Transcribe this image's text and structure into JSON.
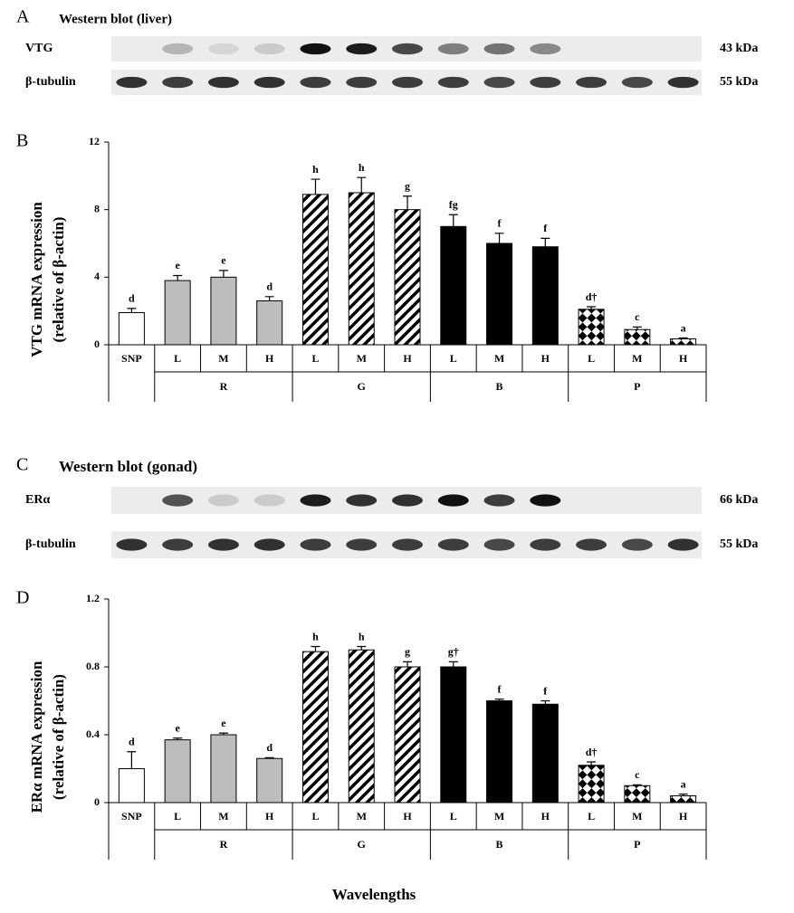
{
  "blots": [
    {
      "panel": "A",
      "title": "Western blot (liver)",
      "rows": [
        {
          "label": "VTG",
          "size": "43 kDa",
          "bands": [
            0,
            0.25,
            0.1,
            0.15,
            1,
            0.95,
            0.75,
            0.5,
            0.55,
            0.45,
            0,
            0,
            0
          ]
        },
        {
          "label": "β-tubulin",
          "size": "55 kDa",
          "bands": [
            0.85,
            0.8,
            0.85,
            0.85,
            0.8,
            0.8,
            0.8,
            0.8,
            0.75,
            0.8,
            0.8,
            0.75,
            0.85
          ]
        }
      ]
    },
    {
      "panel": "C",
      "title": "Western blot (gonad)",
      "rows": [
        {
          "label": "ERα",
          "size": "66 kDa",
          "bands": [
            0,
            0.7,
            0.15,
            0.15,
            0.95,
            0.85,
            0.85,
            1,
            0.8,
            1,
            0,
            0,
            0
          ]
        },
        {
          "label": "β-tubulin",
          "size": "55 kDa",
          "bands": [
            0.85,
            0.8,
            0.85,
            0.85,
            0.8,
            0.8,
            0.8,
            0.8,
            0.75,
            0.8,
            0.8,
            0.75,
            0.85
          ]
        }
      ]
    }
  ],
  "chart_data": [
    {
      "type": "bar",
      "panel": "B",
      "ylabel": [
        "VTG mRNA expression",
        "(relative of β-actin)"
      ],
      "ylim": [
        0,
        12
      ],
      "yticks": [
        0,
        4,
        8,
        12
      ],
      "groups": [
        {
          "categories": [
            "SNP"
          ],
          "style": "white"
        },
        {
          "name": "R",
          "categories": [
            "L",
            "M",
            "H"
          ],
          "style": "gray"
        },
        {
          "name": "G",
          "categories": [
            "L",
            "M",
            "H"
          ],
          "style": "hatch"
        },
        {
          "name": "B",
          "categories": [
            "L",
            "M",
            "H"
          ],
          "style": "black"
        },
        {
          "name": "P",
          "categories": [
            "L",
            "M",
            "H"
          ],
          "style": "checker"
        }
      ],
      "values": [
        1.9,
        3.8,
        4.0,
        2.6,
        8.9,
        9.0,
        8.0,
        7.0,
        6.0,
        5.8,
        2.1,
        0.9,
        0.35
      ],
      "errors": [
        0.25,
        0.3,
        0.4,
        0.25,
        0.9,
        0.9,
        0.8,
        0.7,
        0.6,
        0.5,
        0.15,
        0.15,
        0.05
      ],
      "annotations": [
        "d",
        "e",
        "e",
        "d",
        "h",
        "h",
        "g",
        "fg",
        "f",
        "f",
        "d†",
        "c",
        "a"
      ]
    },
    {
      "type": "bar",
      "panel": "D",
      "ylabel": [
        "ERα mRNA expression",
        "(relative of β-actin)"
      ],
      "ylim": [
        0,
        1.2
      ],
      "yticks": [
        0,
        0.4,
        0.8,
        1.2
      ],
      "groups": [
        {
          "categories": [
            "SNP"
          ],
          "style": "white"
        },
        {
          "name": "R",
          "categories": [
            "L",
            "M",
            "H"
          ],
          "style": "gray"
        },
        {
          "name": "G",
          "categories": [
            "L",
            "M",
            "H"
          ],
          "style": "hatch"
        },
        {
          "name": "B",
          "categories": [
            "L",
            "M",
            "H"
          ],
          "style": "black"
        },
        {
          "name": "P",
          "categories": [
            "L",
            "M",
            "H"
          ],
          "style": "checker"
        }
      ],
      "values": [
        0.2,
        0.37,
        0.4,
        0.26,
        0.89,
        0.9,
        0.8,
        0.8,
        0.6,
        0.58,
        0.22,
        0.1,
        0.04
      ],
      "errors": [
        0.1,
        0.01,
        0.01,
        0.005,
        0.03,
        0.02,
        0.03,
        0.03,
        0.01,
        0.02,
        0.02,
        0.005,
        0.01
      ],
      "annotations": [
        "d",
        "e",
        "e",
        "d",
        "h",
        "h",
        "g",
        "g†",
        "f",
        "f",
        "d†",
        "c",
        "a"
      ]
    }
  ],
  "xlabel": "Wavelengths"
}
